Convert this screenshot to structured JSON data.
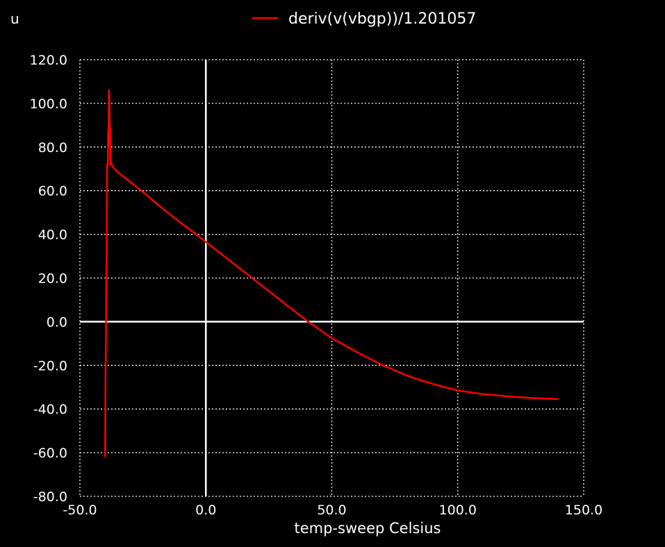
{
  "chart_data": {
    "type": "line",
    "y_unit_label": "u",
    "xlabel": "temp-sweep   Celsius",
    "xlim": [
      -50,
      150
    ],
    "ylim": [
      -80,
      120
    ],
    "x_ticks": [
      -50,
      0,
      50,
      100,
      150
    ],
    "x_tick_labels": [
      "-50.0",
      "0.0",
      "50.0",
      "100.0",
      "150.0"
    ],
    "y_ticks": [
      120,
      100,
      80,
      60,
      40,
      20,
      0,
      -20,
      -40,
      -60,
      -80
    ],
    "y_tick_labels": [
      "120.0",
      "100.0",
      "80.0",
      "60.0",
      "40.0",
      "20.0",
      "0.0",
      "-20.0",
      "-40.0",
      "-60.0",
      "-80.0"
    ],
    "grid": true,
    "legend_position": "top",
    "colors": {
      "background": "#000000",
      "grid": "#ffffff",
      "series": "#ff0000",
      "text": "#ffffff"
    },
    "series": [
      {
        "name": "deriv(v(vbgp))/1.201057",
        "color": "#ff0000",
        "x": [
          -40,
          -39.9,
          -39.8,
          -39.7,
          -39.6,
          -39.5,
          -39.4,
          -39.3,
          -39.2,
          -39.1,
          -39.0,
          -38.9,
          -38.8,
          -38.7,
          -38.6,
          -38.5,
          -38.4,
          -38.2,
          -38.0,
          -37.9,
          -37.8,
          -37.6,
          -37.4,
          -37.0,
          -35,
          -30,
          -25,
          -20,
          -15,
          -10,
          -5,
          0,
          10,
          20,
          30,
          40,
          50,
          60,
          70,
          80,
          90,
          100,
          110,
          120,
          130,
          140
        ],
        "y": [
          -62,
          -40,
          -18,
          -17,
          5,
          26,
          27,
          50,
          72,
          71,
          73,
          72,
          86,
          88,
          80,
          106,
          104,
          88,
          89,
          74,
          72,
          73,
          72,
          71,
          68.5,
          64,
          59.5,
          54.5,
          49.8,
          45.3,
          41,
          36.5,
          27.5,
          18.5,
          9.5,
          0.5,
          -7.5,
          -14,
          -19.8,
          -24.8,
          -28.5,
          -31.5,
          -33.2,
          -34.2,
          -35,
          -35.5
        ]
      }
    ]
  }
}
